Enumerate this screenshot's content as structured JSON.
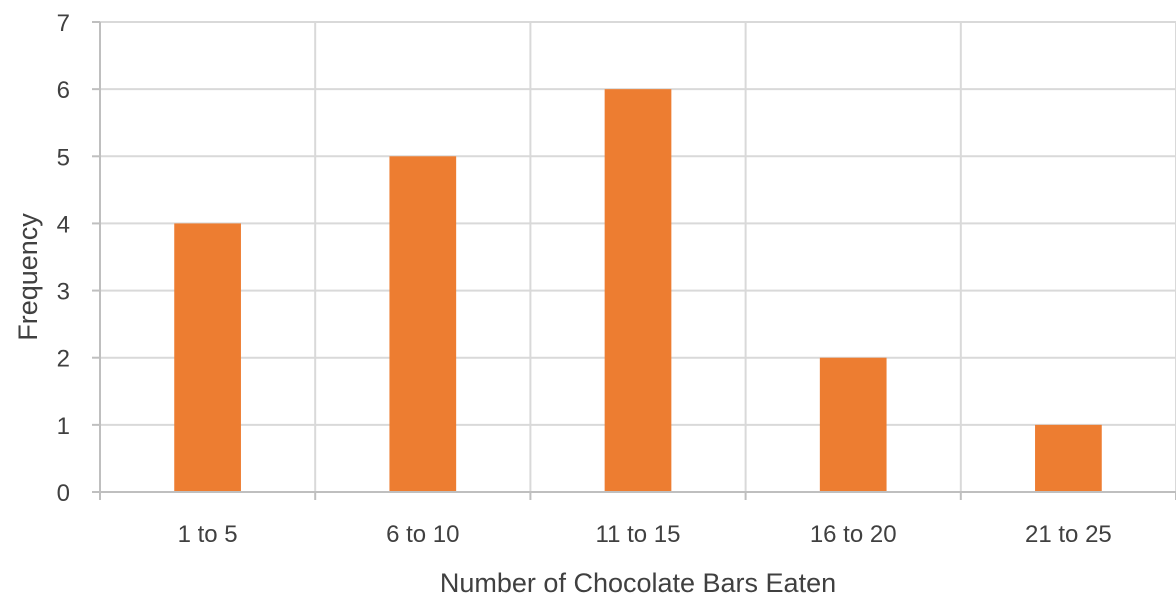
{
  "chart_data": {
    "type": "bar",
    "title": "",
    "xlabel": "Number of Chocolate Bars Eaten",
    "ylabel": "Frequency",
    "categories": [
      "1 to 5",
      "6 to 10",
      "11 to 15",
      "16 to 20",
      "21 to 25"
    ],
    "values": [
      4,
      5,
      6,
      2,
      1
    ],
    "ylim": [
      0,
      7
    ],
    "yticks": [
      0,
      1,
      2,
      3,
      4,
      5,
      6,
      7
    ],
    "grid": true,
    "legend": "none",
    "bar_color": "#ed7d31"
  }
}
